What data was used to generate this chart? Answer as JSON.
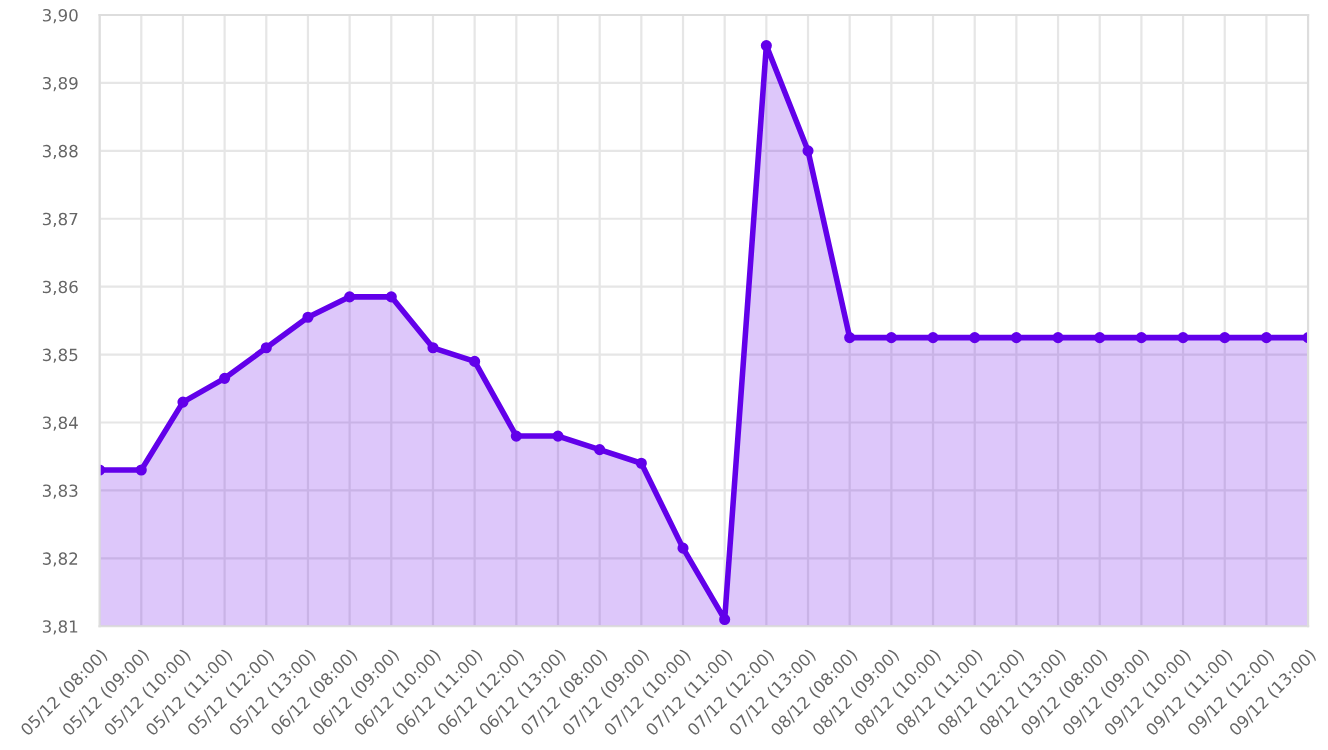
{
  "chart_data": {
    "type": "area",
    "categories": [
      "05/12 (08:00)",
      "05/12 (09:00)",
      "05/12 (10:00)",
      "05/12 (11:00)",
      "05/12 (12:00)",
      "05/12 (13:00)",
      "06/12 (08:00)",
      "06/12 (09:00)",
      "06/12 (10:00)",
      "06/12 (11:00)",
      "06/12 (12:00)",
      "06/12 (13:00)",
      "07/12 (08:00)",
      "07/12 (09:00)",
      "07/12 (10:00)",
      "07/12 (11:00)",
      "07/12 (12:00)",
      "07/12 (13:00)",
      "08/12 (08:00)",
      "08/12 (09:00)",
      "08/12 (10:00)",
      "08/12 (11:00)",
      "08/12 (12:00)",
      "08/12 (13:00)",
      "09/12 (08:00)",
      "09/12 (09:00)",
      "09/12 (10:00)",
      "09/12 (11:00)",
      "09/12 (12:00)",
      "09/12 (13:00)"
    ],
    "series": [
      {
        "color": "#6200ea",
        "values": [
          3.833,
          3.833,
          3.843,
          3.8465,
          3.851,
          3.8555,
          3.8585,
          3.8585,
          3.851,
          3.849,
          3.838,
          3.838,
          3.836,
          3.834,
          3.8215,
          3.811,
          3.8955,
          3.88,
          3.8525,
          3.8525,
          3.8525,
          3.8525,
          3.8525,
          3.8525,
          3.8525,
          3.8525,
          3.8525,
          3.8525,
          3.8525,
          3.8525
        ]
      }
    ],
    "ylim": [
      3.81,
      3.9
    ],
    "yticks": [
      {
        "value": 3.81,
        "label": "3,81"
      },
      {
        "value": 3.82,
        "label": "3,82"
      },
      {
        "value": 3.83,
        "label": "3,83"
      },
      {
        "value": 3.84,
        "label": "3,84"
      },
      {
        "value": 3.85,
        "label": "3,85"
      },
      {
        "value": 3.86,
        "label": "3,86"
      },
      {
        "value": 3.87,
        "label": "3,87"
      },
      {
        "value": 3.88,
        "label": "3,88"
      },
      {
        "value": 3.89,
        "label": "3,89"
      },
      {
        "value": 3.9,
        "label": "3,90"
      }
    ],
    "grid": true,
    "marker": "circle",
    "line_style": "solid"
  }
}
